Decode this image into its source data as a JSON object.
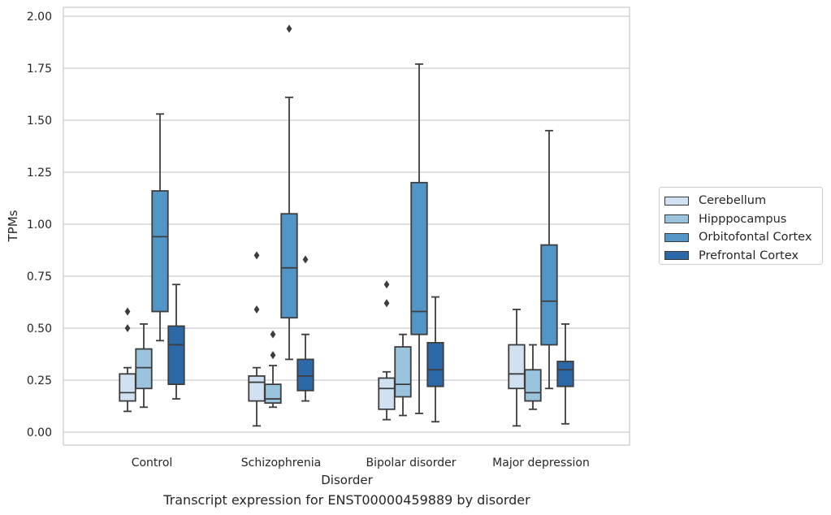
{
  "chart_data": {
    "type": "box",
    "title": "Transcript expression for ENST00000459889 by disorder",
    "xlabel": "Disorder",
    "ylabel": "TPMs",
    "ylim": [
      -0.06,
      2.04
    ],
    "yticks": [
      "0.00",
      "0.25",
      "0.50",
      "0.75",
      "1.00",
      "1.25",
      "1.50",
      "1.75",
      "2.00"
    ],
    "grid": true,
    "legend_position": "right",
    "categories": [
      "Control",
      "Schizophrenia",
      "Bipolar disorder",
      "Major depression"
    ],
    "series": [
      {
        "name": "Cerebellum",
        "color": "#d1e1f1",
        "boxes": [
          {
            "whislo": 0.1,
            "q1": 0.15,
            "med": 0.19,
            "q3": 0.28,
            "whishi": 0.31,
            "fliers": [
              0.5,
              0.58
            ]
          },
          {
            "whislo": 0.03,
            "q1": 0.15,
            "med": 0.24,
            "q3": 0.27,
            "whishi": 0.31,
            "fliers": [
              0.59,
              0.85
            ]
          },
          {
            "whislo": 0.06,
            "q1": 0.11,
            "med": 0.21,
            "q3": 0.26,
            "whishi": 0.29,
            "fliers": [
              0.62,
              0.71
            ]
          },
          {
            "whislo": 0.03,
            "q1": 0.21,
            "med": 0.28,
            "q3": 0.42,
            "whishi": 0.59,
            "fliers": []
          }
        ]
      },
      {
        "name": "Hipppocampus",
        "color": "#9ac3de",
        "boxes": [
          {
            "whislo": 0.12,
            "q1": 0.21,
            "med": 0.31,
            "q3": 0.4,
            "whishi": 0.52,
            "fliers": []
          },
          {
            "whislo": 0.12,
            "q1": 0.14,
            "med": 0.16,
            "q3": 0.23,
            "whishi": 0.32,
            "fliers": [
              0.37,
              0.47
            ]
          },
          {
            "whislo": 0.08,
            "q1": 0.17,
            "med": 0.23,
            "q3": 0.41,
            "whishi": 0.47,
            "fliers": []
          },
          {
            "whislo": 0.11,
            "q1": 0.15,
            "med": 0.19,
            "q3": 0.3,
            "whishi": 0.42,
            "fliers": []
          }
        ]
      },
      {
        "name": "Orbitofontal Cortex",
        "color": "#5296c7",
        "boxes": [
          {
            "whislo": 0.44,
            "q1": 0.58,
            "med": 0.94,
            "q3": 1.16,
            "whishi": 1.53,
            "fliers": []
          },
          {
            "whislo": 0.35,
            "q1": 0.55,
            "med": 0.79,
            "q3": 1.05,
            "whishi": 1.61,
            "fliers": [
              1.94
            ]
          },
          {
            "whislo": 0.09,
            "q1": 0.47,
            "med": 0.58,
            "q3": 1.2,
            "whishi": 1.77,
            "fliers": []
          },
          {
            "whislo": 0.21,
            "q1": 0.42,
            "med": 0.63,
            "q3": 0.9,
            "whishi": 1.45,
            "fliers": []
          }
        ]
      },
      {
        "name": "Prefrontal Cortex",
        "color": "#2b69a9",
        "boxes": [
          {
            "whislo": 0.16,
            "q1": 0.23,
            "med": 0.42,
            "q3": 0.51,
            "whishi": 0.71,
            "fliers": []
          },
          {
            "whislo": 0.15,
            "q1": 0.2,
            "med": 0.27,
            "q3": 0.35,
            "whishi": 0.47,
            "fliers": [
              0.83
            ]
          },
          {
            "whislo": 0.05,
            "q1": 0.22,
            "med": 0.3,
            "q3": 0.43,
            "whishi": 0.65,
            "fliers": []
          },
          {
            "whislo": 0.04,
            "q1": 0.22,
            "med": 0.3,
            "q3": 0.34,
            "whishi": 0.52,
            "fliers": []
          }
        ]
      }
    ]
  }
}
